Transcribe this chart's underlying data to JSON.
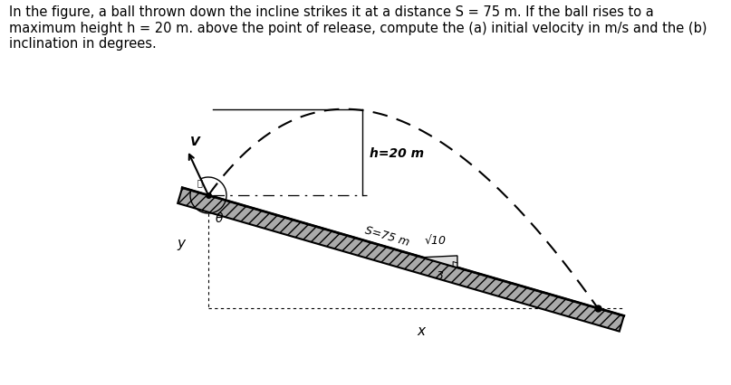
{
  "background_color": "#ffffff",
  "text_block": "In the figure, a ball thrown down the incline strikes it at a distance S = 75 m. If the ball rises to a\nmaximum height h = 20 m. above the point of release, compute the (a) initial velocity in m/s and the (b)\ninclination in degrees.",
  "text_fontsize": 10.5,
  "fig_width": 8.07,
  "fig_height": 4.27,
  "dpi": 100,
  "h_label": "h=20 m",
  "S_label": "S=75 m",
  "sqrt10_label": "√10",
  "three_label": "3",
  "v_label": "V",
  "theta_label": "θ",
  "y_label": "y",
  "x_label": "x"
}
